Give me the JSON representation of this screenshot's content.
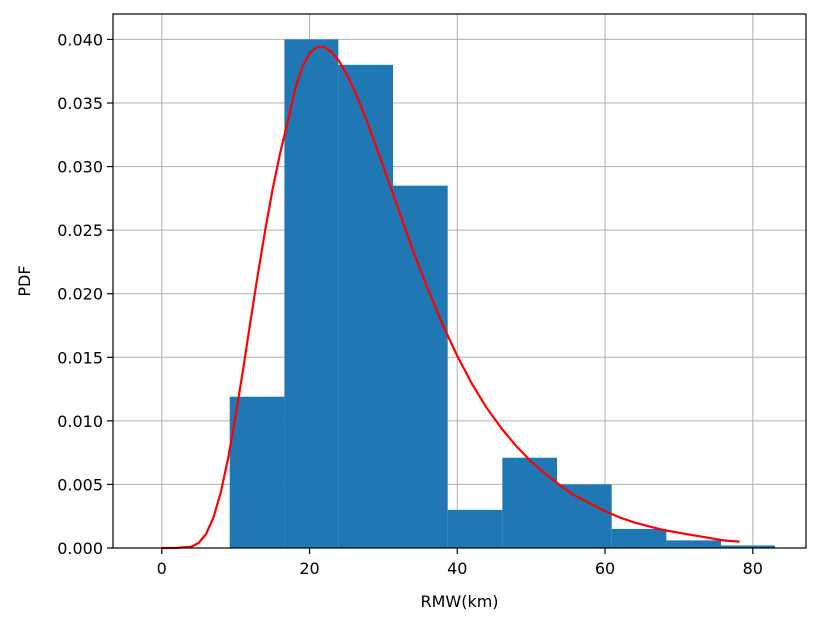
{
  "chart_data": {
    "type": "bar",
    "xlabel": "RMW(km)",
    "ylabel": "PDF",
    "xlim": [
      -6.6,
      87.2
    ],
    "ylim": [
      0,
      0.042
    ],
    "grid": true,
    "xticks": [
      0,
      20,
      40,
      60,
      80
    ],
    "xtick_labels": [
      "0",
      "20",
      "40",
      "60",
      "80"
    ],
    "yticks": [
      0,
      0.005,
      0.01,
      0.015,
      0.02,
      0.025,
      0.03,
      0.035,
      0.04
    ],
    "ytick_labels": [
      "0.000",
      "0.005",
      "0.010",
      "0.015",
      "0.020",
      "0.025",
      "0.030",
      "0.035",
      "0.040"
    ],
    "histogram": {
      "color": "#1f77b4",
      "bins": [
        {
          "x0": 9.2,
          "x1": 16.6,
          "value": 0.0119
        },
        {
          "x0": 16.6,
          "x1": 23.9,
          "value": 0.04
        },
        {
          "x0": 23.9,
          "x1": 31.3,
          "value": 0.038
        },
        {
          "x0": 31.3,
          "x1": 38.7,
          "value": 0.0285
        },
        {
          "x0": 38.7,
          "x1": 46.1,
          "value": 0.003
        },
        {
          "x0": 46.1,
          "x1": 53.5,
          "value": 0.0071
        },
        {
          "x0": 53.5,
          "x1": 60.9,
          "value": 0.005
        },
        {
          "x0": 60.9,
          "x1": 68.3,
          "value": 0.0015
        },
        {
          "x0": 68.3,
          "x1": 75.7,
          "value": 0.0006
        },
        {
          "x0": 75.7,
          "x1": 83.0,
          "value": 0.0002
        }
      ]
    },
    "pdf_curve": {
      "color": "#ff0000",
      "x": [
        0,
        2,
        4,
        5,
        6,
        7,
        8,
        9,
        10,
        11,
        12,
        13,
        14,
        15,
        16,
        17,
        18,
        19,
        20,
        21,
        22,
        23,
        24,
        25,
        26,
        27,
        28,
        29,
        30,
        32,
        34,
        36,
        38,
        40,
        42,
        44,
        46,
        48,
        50,
        52,
        54,
        56,
        58,
        60,
        62,
        64,
        66,
        68,
        70,
        72,
        74,
        76,
        78.2
      ],
      "y": [
        0,
        1e-05,
        0.0001,
        0.0004,
        0.0011,
        0.0024,
        0.0044,
        0.0071,
        0.0104,
        0.014,
        0.0178,
        0.0215,
        0.025,
        0.0282,
        0.031,
        0.0334,
        0.036,
        0.0378,
        0.0389,
        0.0394,
        0.0394,
        0.039,
        0.0383,
        0.0373,
        0.0361,
        0.0347,
        0.0332,
        0.0316,
        0.03,
        0.0267,
        0.0234,
        0.0204,
        0.0176,
        0.0151,
        0.0129,
        0.011,
        0.0094,
        0.008,
        0.0068,
        0.0058,
        0.0049,
        0.0041,
        0.0035,
        0.0029,
        0.0024,
        0.002,
        0.0017,
        0.0014,
        0.0012,
        0.001,
        0.0008,
        0.0006,
        0.0005
      ]
    }
  }
}
